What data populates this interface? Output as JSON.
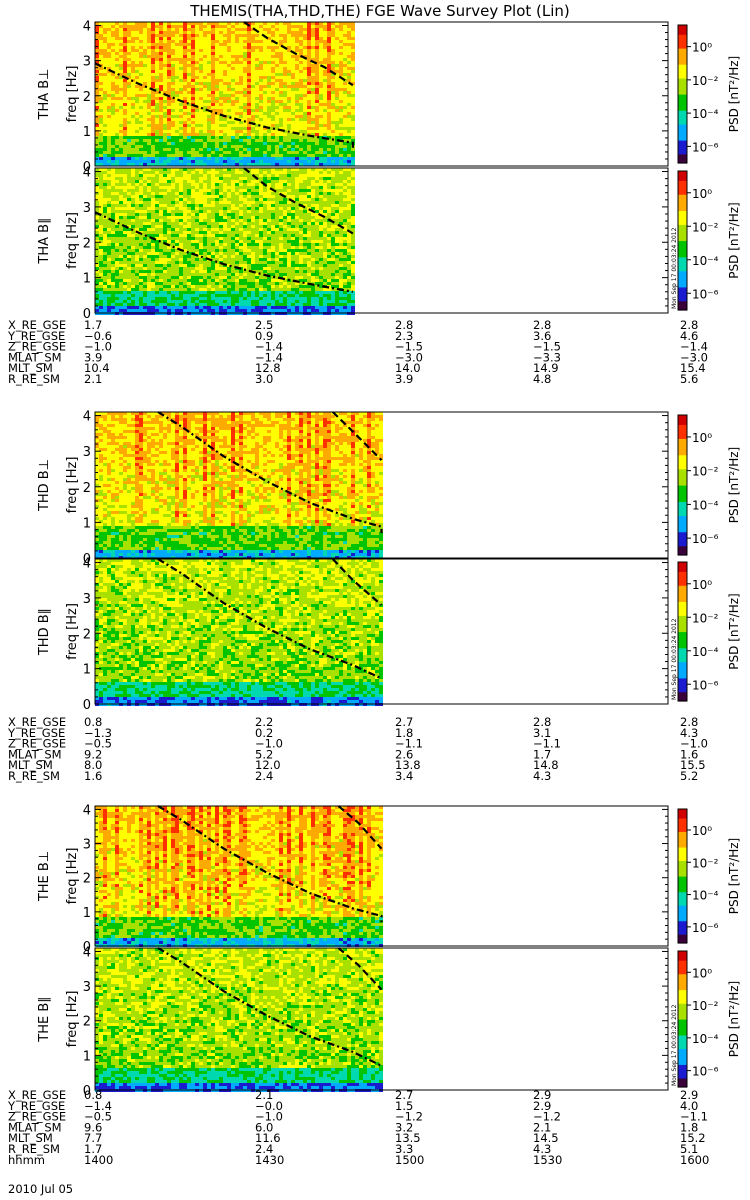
{
  "title": "THEMIS(THA,THD,THE) FGE Wave Survey Plot (Lin)",
  "stamp": "Mon Sep 17 00:03:24 2012",
  "colors": {
    "axis": "#000000",
    "cbar": [
      "#3a003a",
      "#1b1bd0",
      "#00aaff",
      "#00d8b0",
      "#00c400",
      "#a8e000",
      "#ffff00",
      "#ffaa00",
      "#ff3000",
      "#d00000"
    ]
  },
  "chart_data": {
    "type": "heatmap",
    "ylabel_unit": "freq [Hz]",
    "ylim": [
      0,
      4.1
    ],
    "yticks": [
      "0",
      "1",
      "2",
      "3",
      "4"
    ],
    "xlim": [
      "14:00",
      "16:00"
    ],
    "colorbar": {
      "label": "PSD [nT²/Hz]",
      "range_log10": [
        -7,
        1.3
      ],
      "ticks": [
        {
          "exp": 0,
          "label": "10⁰"
        },
        {
          "exp": -2,
          "label": "10⁻²"
        },
        {
          "exp": -4,
          "label": "10⁻⁴"
        },
        {
          "exp": -6,
          "label": "10⁻⁶"
        }
      ]
    },
    "panels": [
      {
        "label": "THA B⊥",
        "data_end": "14:54",
        "perp": true,
        "curve_lower": [
          [
            14.0,
            2.92
          ],
          [
            14.15,
            2.35
          ],
          [
            14.3,
            1.85
          ],
          [
            14.45,
            1.43
          ],
          [
            14.6,
            1.1
          ],
          [
            14.75,
            0.86
          ],
          [
            14.9,
            0.66
          ],
          [
            14.9,
            0.52
          ]
        ],
        "curve_upper": [
          [
            14.52,
            4.1
          ],
          [
            14.6,
            3.65
          ],
          [
            14.7,
            3.2
          ],
          [
            14.8,
            2.82
          ],
          [
            14.9,
            2.3
          ]
        ]
      },
      {
        "label": "THA B∥",
        "data_end": "14:54",
        "perp": false,
        "curve_lower": [
          [
            14.0,
            2.85
          ],
          [
            14.15,
            2.28
          ],
          [
            14.3,
            1.78
          ],
          [
            14.45,
            1.38
          ],
          [
            14.6,
            1.06
          ],
          [
            14.75,
            0.82
          ],
          [
            14.9,
            0.6
          ]
        ],
        "curve_upper": [
          [
            14.52,
            4.1
          ],
          [
            14.6,
            3.58
          ],
          [
            14.7,
            3.12
          ],
          [
            14.8,
            2.72
          ],
          [
            14.9,
            2.25
          ]
        ]
      },
      {
        "label": "THD B⊥",
        "data_end": "15:00",
        "perp": true,
        "curve_lower": [
          [
            14.22,
            4.1
          ],
          [
            14.3,
            3.7
          ],
          [
            14.45,
            2.85
          ],
          [
            14.6,
            2.15
          ],
          [
            14.75,
            1.55
          ],
          [
            14.9,
            1.1
          ],
          [
            15.0,
            0.88
          ],
          [
            15.0,
            0.7
          ]
        ],
        "curve_upper": [
          [
            14.83,
            4.1
          ],
          [
            14.9,
            3.55
          ],
          [
            15.0,
            2.75
          ]
        ]
      },
      {
        "label": "THD B∥",
        "data_end": "15:00",
        "perp": false,
        "curve_lower": [
          [
            14.22,
            4.1
          ],
          [
            14.3,
            3.7
          ],
          [
            14.45,
            2.85
          ],
          [
            14.6,
            2.15
          ],
          [
            14.75,
            1.55
          ],
          [
            14.9,
            1.1
          ],
          [
            15.0,
            0.72
          ]
        ],
        "curve_upper": [
          [
            14.83,
            4.1
          ],
          [
            14.9,
            3.5
          ],
          [
            15.0,
            2.8
          ]
        ]
      },
      {
        "label": "THE B⊥",
        "data_end": "15:00",
        "perp": true,
        "curve_lower": [
          [
            14.22,
            4.1
          ],
          [
            14.3,
            3.7
          ],
          [
            14.45,
            2.85
          ],
          [
            14.6,
            2.15
          ],
          [
            14.75,
            1.55
          ],
          [
            14.9,
            1.1
          ],
          [
            15.0,
            0.88
          ],
          [
            15.0,
            0.7
          ]
        ],
        "curve_upper": [
          [
            14.85,
            4.1
          ],
          [
            14.92,
            3.6
          ],
          [
            15.0,
            2.85
          ]
        ]
      },
      {
        "label": "THE B∥",
        "data_end": "15:00",
        "perp": false,
        "curve_lower": [
          [
            14.22,
            4.1
          ],
          [
            14.3,
            3.7
          ],
          [
            14.45,
            2.85
          ],
          [
            14.6,
            2.15
          ],
          [
            14.75,
            1.55
          ],
          [
            14.9,
            1.1
          ],
          [
            15.0,
            0.7
          ]
        ],
        "curve_upper": [
          [
            14.85,
            4.1
          ],
          [
            14.92,
            3.6
          ],
          [
            15.0,
            2.9
          ]
        ]
      }
    ],
    "orbit_blocks": [
      {
        "rows": [
          {
            "name": "X_RE_GSE",
            "values": [
              "1.7",
              "2.5",
              "2.8",
              "2.8",
              "2.8"
            ]
          },
          {
            "name": "Y_RE_GSE",
            "values": [
              "−0.6",
              "0.9",
              "2.3",
              "3.6",
              "4.6"
            ]
          },
          {
            "name": "Z_RE_GSE",
            "values": [
              "−1.0",
              "−1.4",
              "−1.5",
              "−1.5",
              "−1.4"
            ]
          },
          {
            "name": "MLAT_SM",
            "values": [
              "3.9",
              "−1.4",
              "−3.0",
              "−3.3",
              "−3.0"
            ]
          },
          {
            "name": "MLT_SM",
            "values": [
              "10.4",
              "12.8",
              "14.0",
              "14.9",
              "15.4"
            ]
          },
          {
            "name": "R_RE_SM",
            "values": [
              "2.1",
              "3.0",
              "3.9",
              "4.8",
              "5.6"
            ]
          }
        ]
      },
      {
        "rows": [
          {
            "name": "X_RE_GSE",
            "values": [
              "0.8",
              "2.2",
              "2.7",
              "2.8",
              "2.8"
            ]
          },
          {
            "name": "Y_RE_GSE",
            "values": [
              "−1.3",
              "0.2",
              "1.8",
              "3.1",
              "4.3"
            ]
          },
          {
            "name": "Z_RE_GSE",
            "values": [
              "−0.5",
              "−1.0",
              "−1.1",
              "−1.1",
              "−1.0"
            ]
          },
          {
            "name": "MLAT_SM",
            "values": [
              "9.2",
              "5.2",
              "2.6",
              "1.7",
              "1.6"
            ]
          },
          {
            "name": "MLT_SM",
            "values": [
              "8.0",
              "12.0",
              "13.8",
              "14.8",
              "15.5"
            ]
          },
          {
            "name": "R_RE_SM",
            "values": [
              "1.6",
              "2.4",
              "3.4",
              "4.3",
              "5.2"
            ]
          }
        ]
      },
      {
        "rows": [
          {
            "name": "X_RE_GSE",
            "values": [
              "0.8",
              "2.1",
              "2.7",
              "2.9",
              "2.9"
            ]
          },
          {
            "name": "Y_RE_GSE",
            "values": [
              "−1.4",
              "−0.0",
              "1.5",
              "2.9",
              "4.0"
            ]
          },
          {
            "name": "Z_RE_GSE",
            "values": [
              "−0.5",
              "−1.0",
              "−1.2",
              "−1.2",
              "−1.1"
            ]
          },
          {
            "name": "MLAT_SM",
            "values": [
              "9.6",
              "6.0",
              "3.2",
              "2.1",
              "1.8"
            ]
          },
          {
            "name": "MLT_SM",
            "values": [
              "7.7",
              "11.6",
              "13.5",
              "14.5",
              "15.2"
            ]
          },
          {
            "name": "R_RE_SM",
            "values": [
              "1.7",
              "2.4",
              "3.3",
              "4.3",
              "5.1"
            ]
          },
          {
            "name": "hhmm",
            "values": [
              "1400",
              "1430",
              "1500",
              "1530",
              "1600"
            ]
          }
        ]
      }
    ],
    "date_label": "2010 Jul 05"
  }
}
